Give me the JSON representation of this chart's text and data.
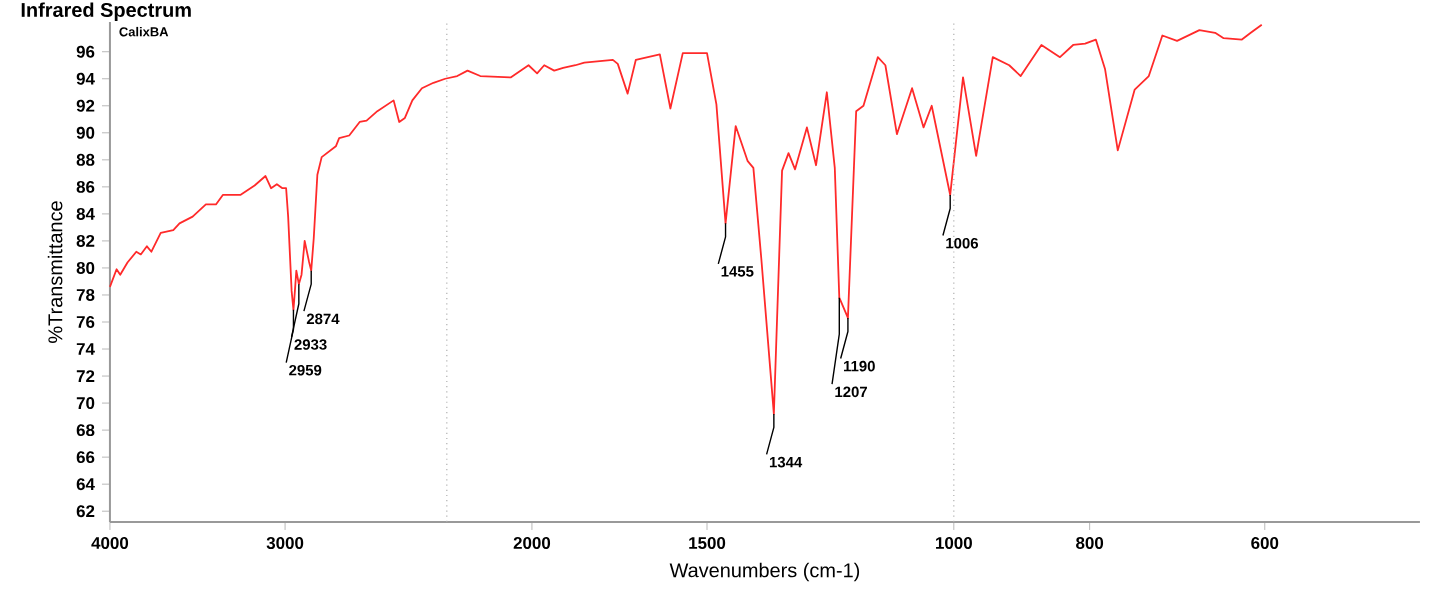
{
  "chart_data": {
    "type": "line",
    "title": "Infrared Spectrum",
    "xlabel": "Wavenumbers (cm-1)",
    "ylabel": "%Transmittance",
    "log": "x",
    "color": "#ff2a2a",
    "line_style": "solid",
    "xlim": [
      4000,
      465
    ],
    "xticks": [
      4000,
      3000,
      2000,
      1500,
      1000,
      800,
      600
    ],
    "ylim": [
      61.2,
      98.2
    ],
    "yticks": [
      62,
      64,
      66,
      68,
      70,
      72,
      74,
      76,
      78,
      80,
      82,
      84,
      86,
      88,
      90,
      92,
      94,
      96
    ],
    "ref_lines": [
      {
        "axis": "x",
        "value": 2300,
        "color": "#b0b0b0",
        "line_style": "dotted"
      },
      {
        "axis": "x",
        "value": 1000,
        "color": "#b0b0b0",
        "line_style": "dotted"
      }
    ],
    "annotations": [
      "CalixBA",
      {
        "text": "2959",
        "x": 2959,
        "y": 76.9
      },
      {
        "text": "2933",
        "x": 2933,
        "y": 78.8
      },
      {
        "text": "2874",
        "x": 2874,
        "y": 79.8
      },
      {
        "text": "1455",
        "x": 1455,
        "y": 83.3
      },
      {
        "text": "1344",
        "x": 1344,
        "y": 69.2
      },
      {
        "text": "1207",
        "x": 1207,
        "y": 77.8
      },
      {
        "text": "1190",
        "x": 1190,
        "y": 76.3
      },
      {
        "text": "1006",
        "x": 1006,
        "y": 85.4
      }
    ],
    "x": [
      4000,
      3957,
      3934,
      3887,
      3831,
      3803,
      3765,
      3737,
      3680,
      3605,
      3568,
      3492,
      3417,
      3361,
      3323,
      3229,
      3154,
      3098,
      3070,
      3041,
      3013,
      2995,
      2985,
      2968,
      2959,
      2952,
      2945,
      2933,
      2920,
      2905,
      2885,
      2874,
      2862,
      2845,
      2825,
      2760,
      2745,
      2700,
      2654,
      2624,
      2578,
      2510,
      2487,
      2464,
      2434,
      2396,
      2351,
      2306,
      2261,
      2223,
      2177,
      2071,
      2011,
      1983,
      1960,
      1928,
      1900,
      1862,
      1835,
      1751,
      1737,
      1709,
      1686,
      1621,
      1593,
      1561,
      1500,
      1477,
      1455,
      1431,
      1403,
      1390,
      1372,
      1344,
      1326,
      1312,
      1298,
      1273,
      1254,
      1232,
      1216,
      1207,
      1190,
      1174,
      1160,
      1133,
      1119,
      1098,
      1071,
      1051,
      1037,
      1006,
      985,
      964,
      938,
      913,
      896,
      866,
      840,
      822,
      806,
      792,
      780,
      764,
      743,
      726,
      710,
      693,
      668,
      651,
      642,
      623,
      614,
      603
    ],
    "values": [
      78.6,
      79.9,
      79.5,
      80.4,
      81.2,
      81.0,
      81.6,
      81.2,
      82.6,
      82.8,
      83.3,
      83.8,
      84.7,
      84.7,
      85.4,
      85.4,
      86.1,
      86.8,
      85.9,
      86.2,
      85.9,
      85.9,
      83.8,
      78.3,
      76.9,
      78.3,
      79.8,
      78.8,
      79.5,
      82.0,
      80.5,
      79.8,
      82.2,
      86.9,
      88.2,
      89.0,
      89.6,
      89.8,
      90.8,
      90.9,
      91.6,
      92.4,
      90.8,
      91.1,
      92.4,
      93.3,
      93.7,
      94.0,
      94.2,
      94.6,
      94.2,
      94.1,
      95.0,
      94.4,
      95.0,
      94.6,
      94.8,
      95.0,
      95.2,
      95.4,
      95.1,
      92.9,
      95.4,
      95.8,
      91.8,
      95.9,
      95.9,
      92.1,
      83.3,
      90.5,
      87.9,
      87.4,
      80.7,
      69.2,
      87.2,
      88.5,
      87.3,
      90.4,
      87.6,
      93.0,
      87.4,
      77.8,
      76.3,
      91.6,
      92.0,
      95.6,
      95.0,
      89.9,
      93.3,
      90.4,
      92.0,
      85.4,
      94.1,
      88.3,
      95.6,
      95.0,
      94.2,
      96.5,
      95.6,
      96.5,
      96.6,
      96.9,
      94.7,
      88.7,
      93.2,
      94.2,
      97.2,
      96.8,
      97.6,
      97.4,
      97.0,
      96.9,
      97.4,
      98.0
    ]
  }
}
